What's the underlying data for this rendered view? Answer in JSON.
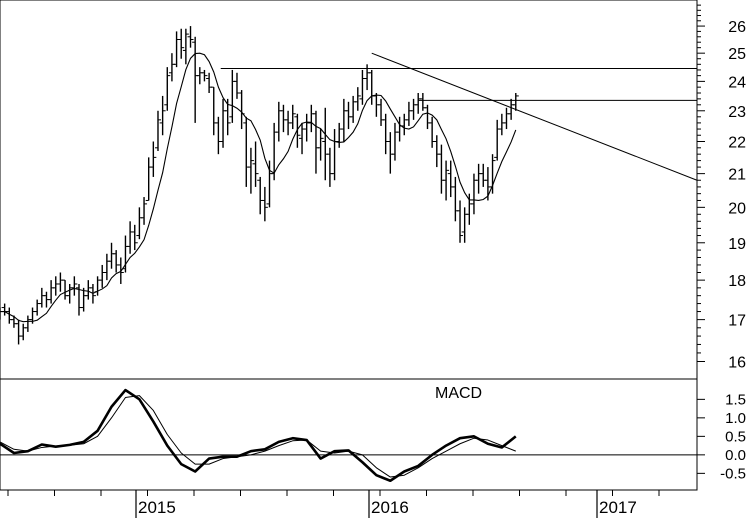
{
  "chart_data": [
    {
      "type": "ohlc",
      "panel": "price",
      "y_ticks": [
        16,
        17,
        18,
        19,
        20,
        21,
        22,
        23,
        24,
        25,
        26
      ],
      "ylim": [
        15.6,
        27.0
      ],
      "xlim": [
        2014.4,
        2017.4
      ],
      "series": [
        {
          "name": "",
          "style": "bars",
          "points": [
            [
              2014.4,
              17.3,
              17.0,
              17.1,
              17.2
            ],
            [
              2014.42,
              17.4,
              17.1,
              17.3,
              17.2
            ],
            [
              2014.44,
              17.3,
              16.9,
              17.2,
              17.0
            ],
            [
              2014.46,
              17.1,
              16.8,
              17.0,
              16.9
            ],
            [
              2014.48,
              17.0,
              16.4,
              16.9,
              16.6
            ],
            [
              2014.5,
              16.9,
              16.5,
              16.6,
              16.8
            ],
            [
              2014.52,
              17.1,
              16.7,
              16.8,
              17.0
            ],
            [
              2014.54,
              17.3,
              16.9,
              17.0,
              17.2
            ],
            [
              2014.56,
              17.5,
              17.1,
              17.2,
              17.4
            ],
            [
              2014.58,
              17.8,
              17.3,
              17.4,
              17.6
            ],
            [
              2014.6,
              17.7,
              17.3,
              17.6,
              17.5
            ],
            [
              2014.62,
              18.0,
              17.4,
              17.5,
              17.8
            ],
            [
              2014.64,
              18.1,
              17.6,
              17.8,
              17.9
            ],
            [
              2014.66,
              18.2,
              17.7,
              17.9,
              18.0
            ],
            [
              2014.68,
              18.0,
              17.5,
              18.0,
              17.6
            ],
            [
              2014.7,
              17.9,
              17.4,
              17.6,
              17.8
            ],
            [
              2014.72,
              18.1,
              17.6,
              17.8,
              17.9
            ],
            [
              2014.74,
              17.9,
              17.1,
              17.8,
              17.3
            ],
            [
              2014.76,
              17.8,
              17.2,
              17.3,
              17.6
            ],
            [
              2014.78,
              18.0,
              17.5,
              17.6,
              17.8
            ],
            [
              2014.8,
              17.9,
              17.4,
              17.8,
              17.6
            ],
            [
              2014.82,
              18.1,
              17.6,
              17.7,
              18.0
            ],
            [
              2014.84,
              18.4,
              17.8,
              18.0,
              18.2
            ],
            [
              2014.86,
              18.7,
              18.0,
              18.2,
              18.5
            ],
            [
              2014.88,
              19.0,
              18.3,
              18.5,
              18.7
            ],
            [
              2014.9,
              18.8,
              18.2,
              18.7,
              18.4
            ],
            [
              2014.92,
              18.6,
              17.9,
              18.4,
              18.2
            ],
            [
              2014.94,
              19.2,
              18.2,
              18.3,
              18.9
            ],
            [
              2014.96,
              19.6,
              18.7,
              18.9,
              19.3
            ],
            [
              2014.98,
              19.5,
              18.8,
              19.3,
              19.0
            ],
            [
              2015.0,
              20.0,
              19.1,
              19.2,
              19.7
            ],
            [
              2015.02,
              20.3,
              19.5,
              19.7,
              20.1
            ],
            [
              2015.04,
              21.5,
              20.2,
              20.2,
              21.2
            ],
            [
              2015.06,
              22.0,
              20.9,
              21.2,
              21.5
            ],
            [
              2015.08,
              23.0,
              21.7,
              21.8,
              22.7
            ],
            [
              2015.1,
              23.5,
              22.2,
              22.6,
              23.0
            ],
            [
              2015.12,
              24.5,
              23.0,
              23.2,
              24.2
            ],
            [
              2015.14,
              25.0,
              24.0,
              24.3,
              24.6
            ],
            [
              2015.16,
              25.8,
              24.5,
              24.6,
              25.5
            ],
            [
              2015.18,
              25.9,
              24.8,
              25.5,
              25.2
            ],
            [
              2015.2,
              25.9,
              24.6,
              25.1,
              25.7
            ],
            [
              2015.22,
              26.0,
              25.2,
              25.6,
              25.5
            ],
            [
              2015.24,
              25.6,
              22.6,
              25.4,
              24.2
            ],
            [
              2015.26,
              24.5,
              23.9,
              24.2,
              24.3
            ],
            [
              2015.28,
              24.4,
              24.0,
              24.3,
              24.2
            ],
            [
              2015.3,
              24.3,
              23.6,
              24.1,
              23.8
            ],
            [
              2015.32,
              23.8,
              22.2,
              23.8,
              22.6
            ],
            [
              2015.34,
              22.8,
              21.6,
              22.6,
              22.0
            ],
            [
              2015.36,
              23.4,
              21.8,
              22.0,
              23.0
            ],
            [
              2015.38,
              23.4,
              22.2,
              23.0,
              22.6
            ],
            [
              2015.4,
              24.4,
              22.6,
              22.8,
              24.0
            ],
            [
              2015.42,
              24.3,
              23.4,
              24.0,
              23.6
            ],
            [
              2015.44,
              23.7,
              22.4,
              23.6,
              22.9
            ],
            [
              2015.46,
              22.8,
              20.6,
              22.6,
              21.2
            ],
            [
              2015.48,
              21.8,
              20.4,
              21.2,
              21.4
            ],
            [
              2015.5,
              22.0,
              20.6,
              21.3,
              21.0
            ],
            [
              2015.52,
              20.9,
              19.8,
              20.8,
              20.2
            ],
            [
              2015.54,
              20.6,
              19.6,
              20.2,
              20.0
            ],
            [
              2015.56,
              21.4,
              20.0,
              20.1,
              21.0
            ],
            [
              2015.58,
              22.6,
              20.8,
              21.0,
              22.3
            ],
            [
              2015.6,
              23.3,
              22.0,
              22.3,
              23.0
            ],
            [
              2015.62,
              23.2,
              22.3,
              23.0,
              22.7
            ],
            [
              2015.64,
              23.0,
              22.2,
              22.7,
              22.6
            ],
            [
              2015.66,
              23.2,
              22.4,
              22.6,
              22.9
            ],
            [
              2015.68,
              22.9,
              21.8,
              22.8,
              22.2
            ],
            [
              2015.7,
              22.6,
              21.6,
              22.1,
              22.4
            ],
            [
              2015.72,
              22.9,
              22.0,
              22.4,
              22.6
            ],
            [
              2015.74,
              23.2,
              22.3,
              22.6,
              22.9
            ],
            [
              2015.76,
              23.0,
              21.0,
              22.9,
              21.8
            ],
            [
              2015.78,
              22.4,
              21.4,
              21.8,
              22.1
            ],
            [
              2015.8,
              23.1,
              20.8,
              22.0,
              21.6
            ],
            [
              2015.82,
              21.8,
              20.6,
              21.6,
              21.0
            ],
            [
              2015.84,
              22.4,
              20.8,
              21.0,
              22.0
            ],
            [
              2015.86,
              22.6,
              21.8,
              22.0,
              22.4
            ],
            [
              2015.88,
              23.4,
              22.0,
              22.4,
              23.0
            ],
            [
              2015.9,
              23.3,
              22.4,
              23.0,
              22.8
            ],
            [
              2015.92,
              23.5,
              22.6,
              22.8,
              23.3
            ],
            [
              2015.94,
              23.8,
              23.0,
              23.3,
              23.5
            ],
            [
              2015.96,
              24.4,
              23.2,
              23.4,
              24.1
            ],
            [
              2015.98,
              24.6,
              23.7,
              24.1,
              24.3
            ],
            [
              2016.0,
              24.4,
              23.2,
              24.3,
              23.5
            ],
            [
              2016.02,
              23.6,
              22.8,
              23.5,
              23.2
            ],
            [
              2016.04,
              23.4,
              22.5,
              23.2,
              22.7
            ],
            [
              2016.06,
              22.9,
              21.6,
              22.7,
              22.0
            ],
            [
              2016.08,
              22.3,
              21.0,
              22.0,
              21.6
            ],
            [
              2016.1,
              22.6,
              21.4,
              21.6,
              22.3
            ],
            [
              2016.12,
              22.8,
              22.0,
              22.3,
              22.5
            ],
            [
              2016.14,
              22.9,
              22.2,
              22.5,
              22.7
            ],
            [
              2016.16,
              23.3,
              22.5,
              22.7,
              23.0
            ],
            [
              2016.18,
              23.4,
              22.7,
              23.0,
              23.2
            ],
            [
              2016.2,
              23.6,
              22.9,
              23.2,
              23.4
            ],
            [
              2016.22,
              23.6,
              23.0,
              23.4,
              23.1
            ],
            [
              2016.24,
              23.2,
              22.4,
              23.1,
              22.6
            ],
            [
              2016.26,
              22.8,
              21.8,
              22.6,
              22.0
            ],
            [
              2016.28,
              22.2,
              21.2,
              22.0,
              21.6
            ],
            [
              2016.3,
              21.9,
              20.4,
              21.6,
              20.8
            ],
            [
              2016.32,
              21.4,
              20.2,
              20.8,
              21.1
            ],
            [
              2016.34,
              21.4,
              20.3,
              21.0,
              20.6
            ],
            [
              2016.36,
              20.9,
              19.6,
              20.6,
              19.9
            ],
            [
              2016.38,
              20.2,
              19.0,
              19.9,
              19.2
            ],
            [
              2016.4,
              20.0,
              19.0,
              19.3,
              19.8
            ],
            [
              2016.42,
              20.4,
              19.5,
              19.8,
              20.1
            ],
            [
              2016.44,
              21.0,
              19.8,
              20.1,
              20.8
            ],
            [
              2016.46,
              21.3,
              20.4,
              20.8,
              21.0
            ],
            [
              2016.48,
              21.3,
              20.6,
              21.0,
              20.8
            ],
            [
              2016.5,
              21.2,
              20.2,
              20.8,
              20.6
            ],
            [
              2016.52,
              21.6,
              20.4,
              20.6,
              21.4
            ],
            [
              2016.54,
              22.7,
              21.4,
              21.5,
              22.4
            ],
            [
              2016.56,
              22.9,
              22.2,
              22.4,
              22.6
            ],
            [
              2016.58,
              23.1,
              22.4,
              22.6,
              22.9
            ],
            [
              2016.6,
              23.4,
              22.7,
              22.9,
              23.2
            ],
            [
              2016.62,
              23.6,
              23.0,
              23.2,
              23.5
            ]
          ]
        }
      ],
      "annotations": [
        "",
        ""
      ]
    },
    {
      "type": "line",
      "panel": "macd",
      "label": "MACD",
      "y_ticks": [
        "1.5",
        "1.0",
        "0.5",
        "0.0",
        "-0.5"
      ],
      "ylim": [
        -0.95,
        2.05
      ],
      "xlim": [
        2014.4,
        2017.4
      ],
      "x_ticks": [
        "2015",
        "2016",
        "2017"
      ],
      "series": [
        {
          "name": "",
          "style": "thick",
          "x": [
            2014.4,
            2014.46,
            2014.52,
            2014.58,
            2014.64,
            2014.7,
            2014.76,
            2014.82,
            2014.88,
            2014.94,
            2015.0,
            2015.06,
            2015.12,
            2015.18,
            2015.24,
            2015.3,
            2015.36,
            2015.42,
            2015.48,
            2015.54,
            2015.6,
            2015.66,
            2015.72,
            2015.78,
            2015.84,
            2015.9,
            2015.96,
            2016.02,
            2016.08,
            2016.14,
            2016.2,
            2016.26,
            2016.32,
            2016.38,
            2016.44,
            2016.5,
            2016.56,
            2016.62
          ],
          "values": [
            0.3,
            0.05,
            0.1,
            0.28,
            0.22,
            0.27,
            0.35,
            0.65,
            1.3,
            1.75,
            1.5,
            0.9,
            0.25,
            -0.25,
            -0.45,
            -0.1,
            -0.05,
            -0.05,
            0.1,
            0.15,
            0.35,
            0.45,
            0.4,
            -0.1,
            0.1,
            0.12,
            -0.2,
            -0.55,
            -0.7,
            -0.45,
            -0.3,
            0.0,
            0.25,
            0.45,
            0.5,
            0.3,
            0.2,
            0.5
          ]
        },
        {
          "name": "",
          "style": "thin",
          "x": [
            2014.4,
            2014.46,
            2014.52,
            2014.58,
            2014.64,
            2014.7,
            2014.76,
            2014.82,
            2014.88,
            2014.94,
            2015.0,
            2015.06,
            2015.12,
            2015.18,
            2015.24,
            2015.3,
            2015.36,
            2015.42,
            2015.48,
            2015.54,
            2015.6,
            2015.66,
            2015.72,
            2015.78,
            2015.84,
            2015.9,
            2015.96,
            2016.02,
            2016.08,
            2016.14,
            2016.2,
            2016.26,
            2016.32,
            2016.38,
            2016.44,
            2016.5,
            2016.56,
            2016.62
          ],
          "values": [
            0.35,
            0.15,
            0.1,
            0.2,
            0.24,
            0.26,
            0.3,
            0.5,
            1.0,
            1.55,
            1.6,
            1.2,
            0.55,
            0.05,
            -0.25,
            -0.25,
            -0.1,
            -0.05,
            0.0,
            0.1,
            0.25,
            0.38,
            0.4,
            0.1,
            0.05,
            0.1,
            0.0,
            -0.35,
            -0.6,
            -0.55,
            -0.35,
            -0.1,
            0.1,
            0.3,
            0.45,
            0.4,
            0.25,
            0.1
          ]
        }
      ]
    }
  ]
}
